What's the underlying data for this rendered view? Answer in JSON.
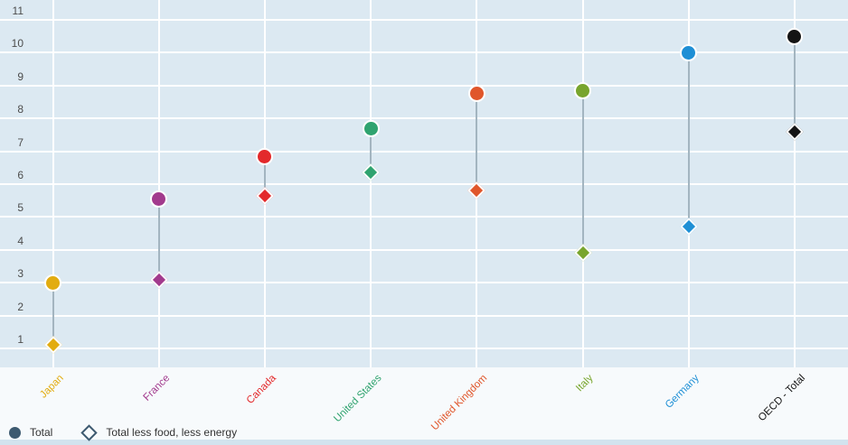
{
  "chart_data": {
    "type": "scatter",
    "subtype": "dumbbell-dot-plot",
    "title": "",
    "xlabel": "",
    "ylabel": "",
    "categories": [
      "Japan",
      "France",
      "Canada",
      "United States",
      "United Kingdom",
      "Italy",
      "Germany",
      "OECD - Total"
    ],
    "category_colors": [
      "#E2AC10",
      "#A23A8D",
      "#E3292B",
      "#2FA36F",
      "#E0562B",
      "#78A52D",
      "#1E8FD5",
      "#141414"
    ],
    "series": [
      {
        "name": "Total",
        "marker": "circle",
        "values": [
          3.0,
          5.55,
          6.85,
          7.7,
          8.75,
          8.85,
          10.0,
          10.5
        ]
      },
      {
        "name": "Total less food, less energy",
        "marker": "diamond",
        "values": [
          1.1,
          3.1,
          5.65,
          6.35,
          5.8,
          3.9,
          4.7,
          7.6
        ]
      }
    ],
    "y_ticks": [
      1,
      2,
      3,
      4,
      5,
      6,
      7,
      8,
      9,
      10,
      11
    ],
    "ylim": [
      0.4,
      11.6
    ],
    "grid": true,
    "legend_position": "bottom-left",
    "colors": {
      "plot_background": "#dce9f2",
      "gridline": "#ffffff",
      "connector": "#a3b5c0",
      "tick_label": "#4d4d4d",
      "page_background": "#f7fafc",
      "bottom_strip": "#d2e3ee"
    }
  },
  "legend": {
    "marker_color": "#3d5a70",
    "items": [
      {
        "label": "Total",
        "marker": "circle"
      },
      {
        "label": "Total less food, less energy",
        "marker": "diamond"
      }
    ]
  }
}
